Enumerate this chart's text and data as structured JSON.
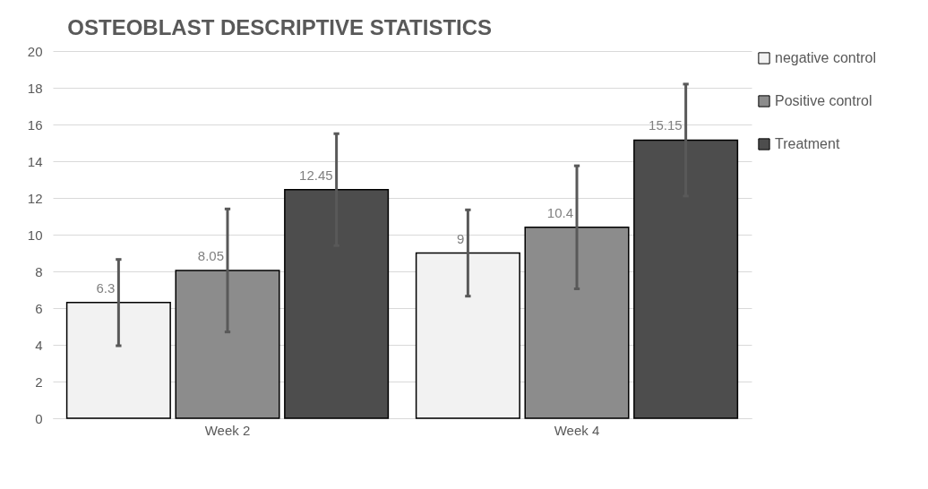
{
  "chart_data": {
    "type": "bar",
    "title": "OSTEOBLAST DESCRIPTIVE STATISTICS",
    "categories": [
      "Week 2",
      "Week 4"
    ],
    "series": [
      {
        "name": "negative control",
        "color": "#f2f2f2",
        "values": [
          6.3,
          9
        ],
        "errors": [
          2.35,
          2.35
        ]
      },
      {
        "name": "Positive control",
        "color": "#8c8c8c",
        "values": [
          8.05,
          10.4
        ],
        "errors": [
          3.35,
          3.35
        ]
      },
      {
        "name": "Treatment",
        "color": "#4d4d4d",
        "values": [
          12.45,
          15.15
        ],
        "errors": [
          3.05,
          3.05
        ]
      }
    ],
    "ylim": [
      0,
      20
    ],
    "yticks": [
      0,
      2,
      4,
      6,
      8,
      10,
      12,
      14,
      16,
      18,
      20
    ],
    "grid": "y",
    "legend": "right",
    "data_labels": true
  }
}
